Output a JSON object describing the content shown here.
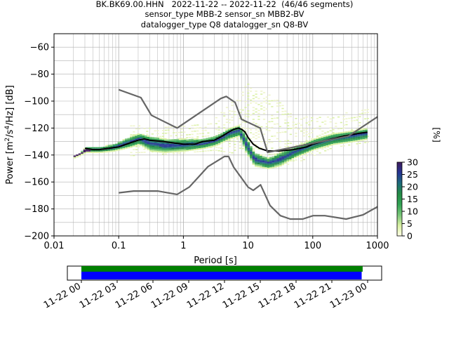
{
  "header": {
    "line1": "BK.BK69.00.HHN   2022-11-22 -- 2022-11-22  (46/46 segments)",
    "line2": "sensor_type MBB-2 sensor_sn MBB2-BV",
    "line3": "datalogger_type Q8 datalogger_sn Q8-BV"
  },
  "chart_data": [
    {
      "type": "heatmap",
      "subtype": "probabilistic power spectral density",
      "xlabel": "Period [s]",
      "ylabel": "Power [m^2/s^4/Hz] [dB]",
      "xscale": "log",
      "xlim": [
        0.01,
        1000
      ],
      "ylim": [
        -200,
        -50
      ],
      "xticks": [
        "0.01",
        "0.1",
        "1",
        "10",
        "100",
        "1000"
      ],
      "yticks": [
        "−200",
        "−180",
        "−160",
        "−140",
        "−120",
        "−100",
        "−80",
        "−60"
      ],
      "grid": true,
      "colorbar": {
        "label": "[%]",
        "min": 0,
        "max": 30,
        "ticks": [
          "0",
          "5",
          "10",
          "15",
          "20",
          "25",
          "30"
        ],
        "colormap": [
          "#ffffe5",
          "#d9f0a3",
          "#78c679",
          "#31a354",
          "#238b45",
          "#1d6b7a",
          "#253494",
          "#3f1b5c"
        ]
      },
      "density_band": [
        {
          "x": 0.02,
          "lo": -142,
          "hi": -140
        },
        {
          "x": 0.025,
          "lo": -140,
          "hi": -138
        },
        {
          "x": 0.03,
          "lo": -138,
          "hi": -134
        },
        {
          "x": 0.05,
          "lo": -138,
          "hi": -134
        },
        {
          "x": 0.08,
          "lo": -137,
          "hi": -132
        },
        {
          "x": 0.1,
          "lo": -136,
          "hi": -130
        },
        {
          "x": 0.15,
          "lo": -134,
          "hi": -126
        },
        {
          "x": 0.2,
          "lo": -132,
          "hi": -124
        },
        {
          "x": 0.3,
          "lo": -137,
          "hi": -126
        },
        {
          "x": 0.5,
          "lo": -138,
          "hi": -128
        },
        {
          "x": 1.0,
          "lo": -137,
          "hi": -128
        },
        {
          "x": 2.0,
          "lo": -135,
          "hi": -128
        },
        {
          "x": 3.0,
          "lo": -133,
          "hi": -126
        },
        {
          "x": 5.0,
          "lo": -128,
          "hi": -120
        },
        {
          "x": 7.0,
          "lo": -126,
          "hi": -118
        },
        {
          "x": 9.0,
          "lo": -138,
          "hi": -126
        },
        {
          "x": 12.0,
          "lo": -148,
          "hi": -138
        },
        {
          "x": 20.0,
          "lo": -150,
          "hi": -142
        },
        {
          "x": 30.0,
          "lo": -148,
          "hi": -138
        },
        {
          "x": 50.0,
          "lo": -142,
          "hi": -134
        },
        {
          "x": 100.0,
          "lo": -136,
          "hi": -128
        },
        {
          "x": 200.0,
          "lo": -132,
          "hi": -124
        },
        {
          "x": 400.0,
          "lo": -130,
          "hi": -122
        },
        {
          "x": 700.0,
          "lo": -128,
          "hi": -120
        }
      ],
      "faint_spread": [
        {
          "x": 0.2,
          "lo": -140,
          "hi": -118
        },
        {
          "x": 1.0,
          "lo": -138,
          "hi": -118
        },
        {
          "x": 3.0,
          "lo": -136,
          "hi": -112
        },
        {
          "x": 10.0,
          "lo": -140,
          "hi": -86
        },
        {
          "x": 20.0,
          "lo": -148,
          "hi": -90
        },
        {
          "x": 50.0,
          "lo": -146,
          "hi": -112
        },
        {
          "x": 200.0,
          "lo": -134,
          "hi": -110
        },
        {
          "x": 700.0,
          "lo": -130,
          "hi": -104
        }
      ],
      "series": [
        {
          "role": "median",
          "color": "#000000",
          "x": [
            0.03,
            0.04,
            0.05,
            0.07,
            0.1,
            0.15,
            0.2,
            0.25,
            0.3,
            0.5,
            0.7,
            1.0,
            1.5,
            2.0,
            3.0,
            4.0,
            5.0,
            6.0,
            7.0,
            8.0,
            9.0,
            10.0,
            12.0,
            15.0,
            20.0,
            30.0,
            50.0,
            80.0,
            100.0,
            200.0,
            300.0,
            500.0,
            700.0
          ],
          "y": [
            -135,
            -136,
            -136,
            -135,
            -134,
            -131,
            -129,
            -128,
            -129,
            -130,
            -131,
            -132,
            -132,
            -130,
            -129,
            -126,
            -123,
            -121,
            -120,
            -121,
            -123,
            -127,
            -132,
            -135,
            -137,
            -137,
            -136,
            -134,
            -132,
            -128,
            -126,
            -124,
            -123
          ]
        },
        {
          "role": "new high noise model",
          "color": "#666666",
          "x": [
            0.1,
            0.22,
            0.32,
            0.8,
            3.8,
            4.6,
            6.3,
            7.9,
            15.4,
            20,
            354.8,
            10000
          ],
          "y": [
            -91.5,
            -97.4,
            -110.5,
            -120,
            -98,
            -96.5,
            -101,
            -113.5,
            -120,
            -138,
            -126,
            -80
          ]
        },
        {
          "role": "new low noise model",
          "color": "#666666",
          "x": [
            0.1,
            0.17,
            0.4,
            0.8,
            1.24,
            2.4,
            4.3,
            5.0,
            6.0,
            10.0,
            12.0,
            15.6,
            21.9,
            31.6,
            45.0,
            70.0,
            101.0,
            154.0,
            328.0,
            600.0,
            10000
          ],
          "y": [
            -168,
            -166.7,
            -166.7,
            -169.2,
            -163.7,
            -148.6,
            -141.1,
            -141.1,
            -149,
            -163.8,
            -166.2,
            -162.1,
            -177.5,
            -185,
            -187.5,
            -187.5,
            -185,
            -185,
            -187.5,
            -184.4,
            -151.5
          ]
        }
      ]
    },
    {
      "type": "bar",
      "subtype": "data coverage timeline",
      "xlim": [
        "2022-11-22 00:00",
        "2022-11-23 00:00"
      ],
      "tick_labels": [
        "11-22 00",
        "11-22 03",
        "11-22 06",
        "11-22 09",
        "11-22 12",
        "11-22 15",
        "11-22 18",
        "11-22 21",
        "11-23 00"
      ],
      "series": [
        {
          "role": "data available",
          "color": "#008000",
          "start": "2022-11-22 00:00",
          "end": "2022-11-22 23:35"
        },
        {
          "role": "used segments",
          "color": "#0000ff",
          "start": "2022-11-22 00:00",
          "end": "2022-11-22 23:30"
        }
      ]
    }
  ]
}
